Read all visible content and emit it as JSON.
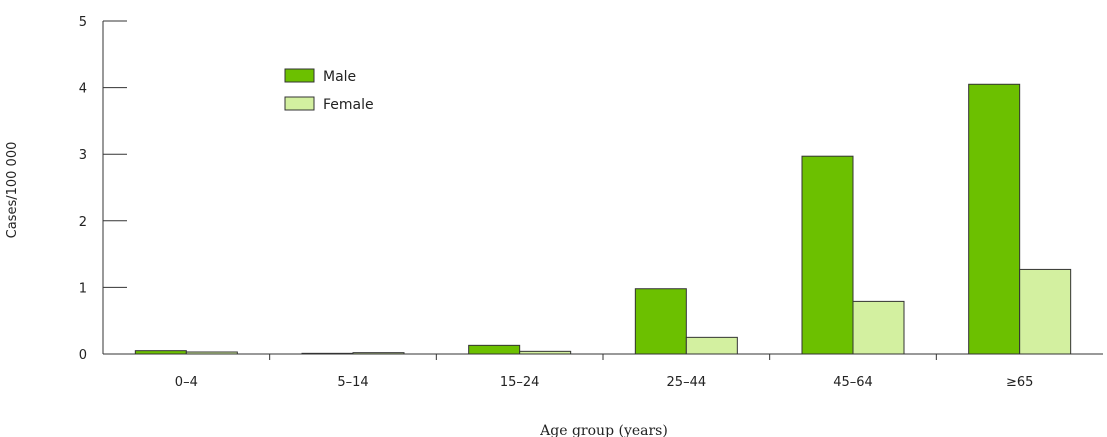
{
  "chart_data": {
    "type": "bar",
    "title": "",
    "xlabel": "Age group (years)",
    "ylabel": "Cases/100 000",
    "categories": [
      "0–4",
      "5–14",
      "15–24",
      "25–44",
      "45–64",
      "≥65"
    ],
    "series": [
      {
        "name": "Male",
        "color": "#6cc000",
        "values": [
          0.05,
          0.01,
          0.13,
          0.98,
          2.97,
          4.05
        ]
      },
      {
        "name": "Female",
        "color": "#d3f0a0",
        "values": [
          0.03,
          0.02,
          0.04,
          0.25,
          0.79,
          1.27
        ]
      }
    ],
    "ylim": [
      0,
      5
    ],
    "yticks": [
      0,
      1,
      2,
      3,
      4,
      5
    ],
    "grid": false,
    "legend_position": "top-left"
  }
}
